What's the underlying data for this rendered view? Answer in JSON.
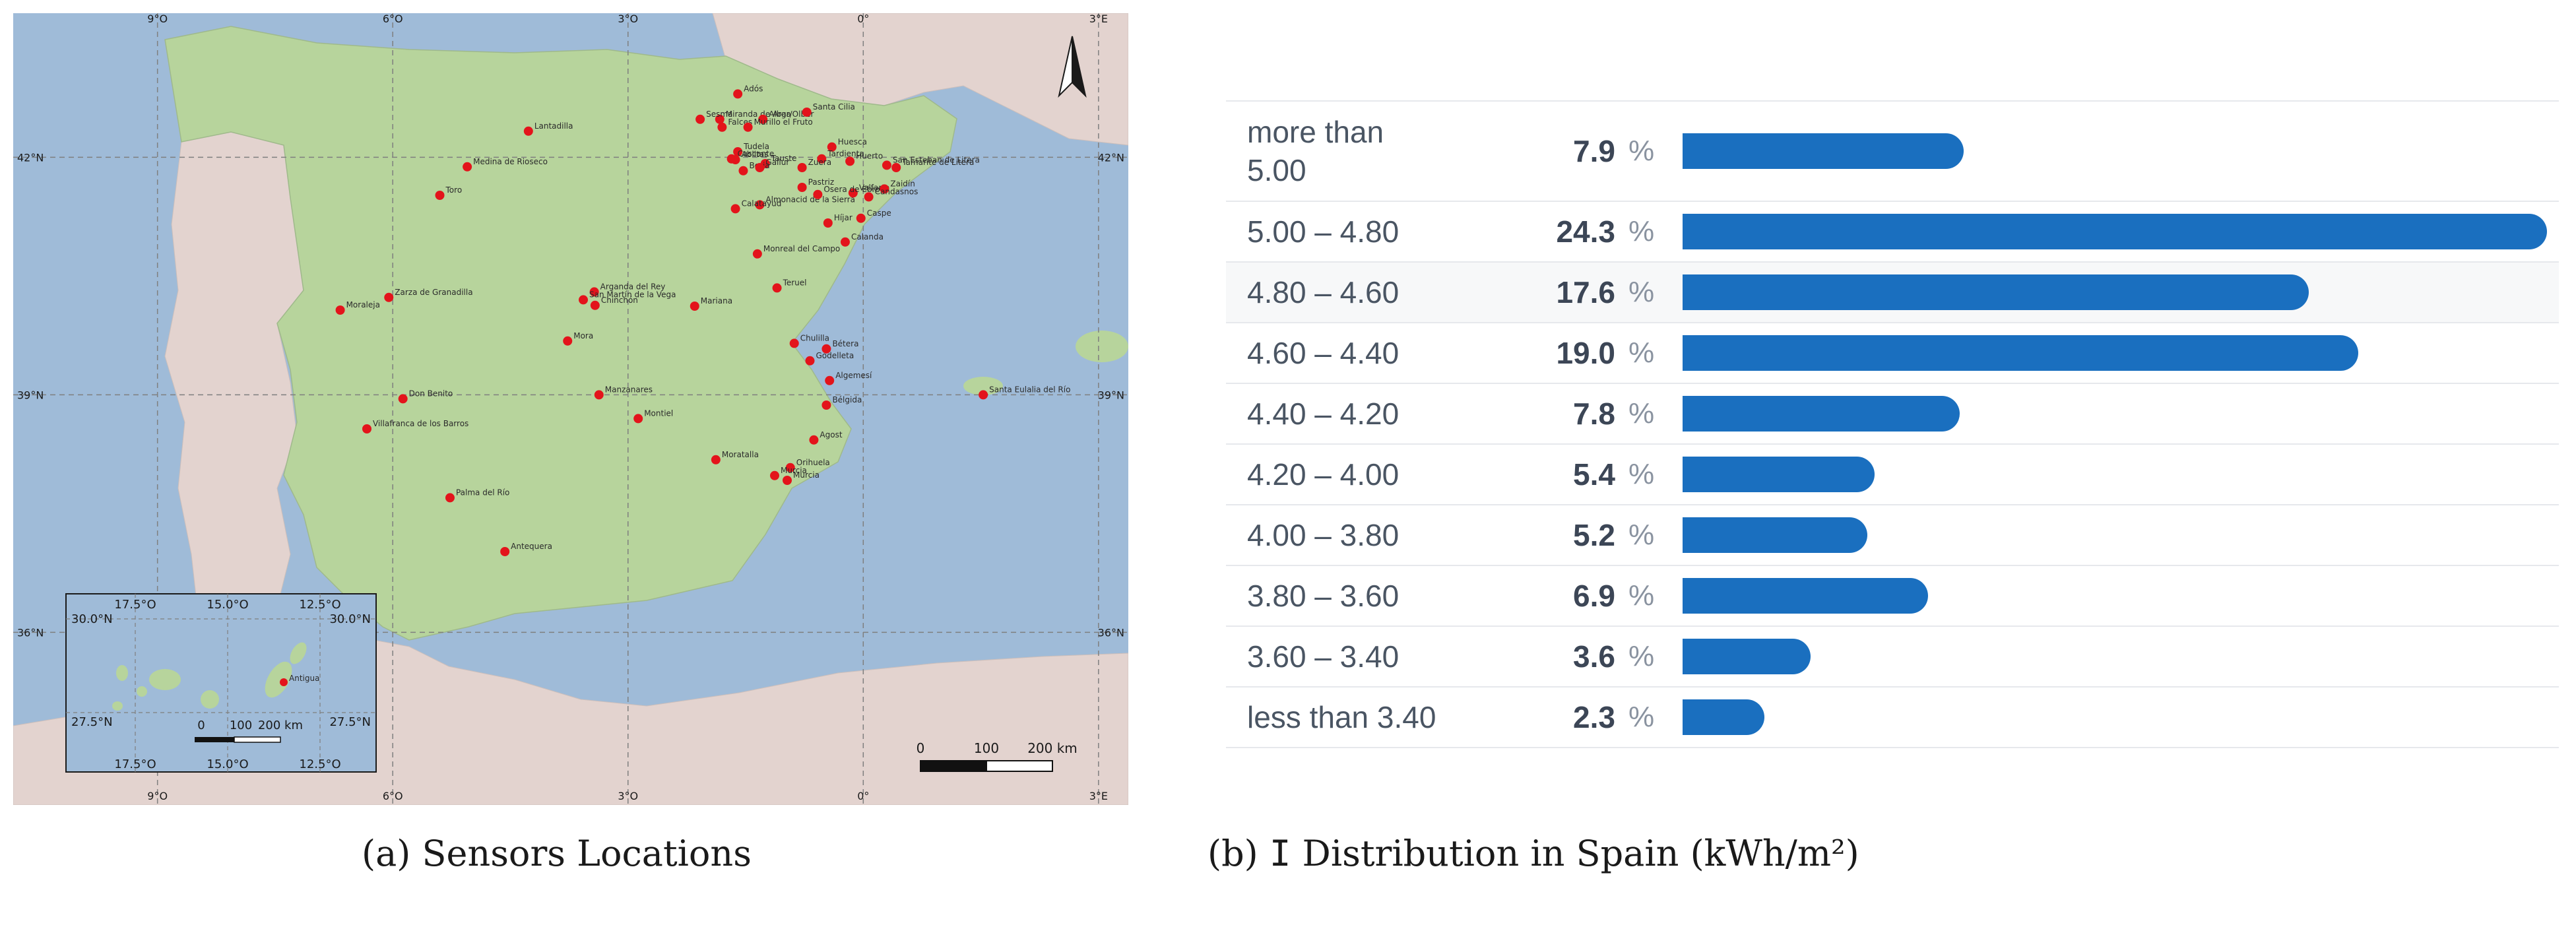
{
  "captions": {
    "a": "(a) Sensors Locations",
    "b_prefix": "(b) ",
    "b_symbol": "I",
    "b_suffix": " Distribution in Spain (kWh/m²)"
  },
  "map": {
    "north_arrow_icon": "north-arrow-icon",
    "colors": {
      "sea": "#9fbbd8",
      "land_spain": "#b7d49c",
      "land_other": "#e3d3cf",
      "point": "#e3141b",
      "grid": "#7f7f7f"
    },
    "lon_ticks": [
      {
        "label": "9°O",
        "lon": -9
      },
      {
        "label": "6°O",
        "lon": -6
      },
      {
        "label": "3°O",
        "lon": -3
      },
      {
        "label": "0°",
        "lon": 0
      },
      {
        "label": "3°E",
        "lon": 3
      }
    ],
    "lat_ticks": [
      {
        "label": "42°N",
        "lat": 42
      },
      {
        "label": "39°N",
        "lat": 39
      },
      {
        "label": "36°N",
        "lat": 36
      }
    ],
    "scale_bar": {
      "labels": [
        "0",
        "100",
        "200 km"
      ]
    },
    "sensors": [
      {
        "name": "Adós",
        "lon": -1.6,
        "lat": 42.8
      },
      {
        "name": "Miranda de Arga",
        "lon": -1.83,
        "lat": 42.48
      },
      {
        "name": "Sesma",
        "lon": -2.08,
        "lat": 42.48
      },
      {
        "name": "Falces",
        "lon": -1.8,
        "lat": 42.38
      },
      {
        "name": "Albar/Olber",
        "lon": -1.28,
        "lat": 42.48
      },
      {
        "name": "Santa Cilia",
        "lon": -0.72,
        "lat": 42.57
      },
      {
        "name": "Murillo el Fruto",
        "lon": -1.47,
        "lat": 42.38
      },
      {
        "name": "Lantadilla",
        "lon": -4.27,
        "lat": 42.33
      },
      {
        "name": "Tudela",
        "lon": -1.6,
        "lat": 42.07
      },
      {
        "name": "Huesca",
        "lon": -0.4,
        "lat": 42.13
      },
      {
        "name": "Cascante",
        "lon": -1.68,
        "lat": 41.98
      },
      {
        "name": "Tauste",
        "lon": -1.25,
        "lat": 41.92
      },
      {
        "name": "Tardienta",
        "lon": -0.53,
        "lat": 41.98
      },
      {
        "name": "Huerto",
        "lon": -0.17,
        "lat": 41.95
      },
      {
        "name": "San Esteban de Litera",
        "lon": 0.3,
        "lat": 41.9
      },
      {
        "name": "Medina de Rioseco",
        "lon": -5.05,
        "lat": 41.88
      },
      {
        "name": "Ablitas",
        "lon": -1.63,
        "lat": 41.97
      },
      {
        "name": "Borja",
        "lon": -1.53,
        "lat": 41.83
      },
      {
        "name": "Gallur",
        "lon": -1.32,
        "lat": 41.87
      },
      {
        "name": "Zuera",
        "lon": -0.78,
        "lat": 41.87
      },
      {
        "name": "Tamarite de Litera",
        "lon": 0.42,
        "lat": 41.87
      },
      {
        "name": "Pastriz",
        "lon": -0.78,
        "lat": 41.62
      },
      {
        "name": "Valfarta",
        "lon": -0.13,
        "lat": 41.55
      },
      {
        "name": "Zaidín",
        "lon": 0.27,
        "lat": 41.6
      },
      {
        "name": "Toro",
        "lon": -5.4,
        "lat": 41.52
      },
      {
        "name": "Almonacid de la Sierra",
        "lon": -1.32,
        "lat": 41.4
      },
      {
        "name": "Osera de Ebro",
        "lon": -0.58,
        "lat": 41.53
      },
      {
        "name": "Candasnos",
        "lon": 0.07,
        "lat": 41.5
      },
      {
        "name": "Calatayud",
        "lon": -1.63,
        "lat": 41.35
      },
      {
        "name": "Híjar",
        "lon": -0.45,
        "lat": 41.17
      },
      {
        "name": "Caspe",
        "lon": -0.03,
        "lat": 41.23
      },
      {
        "name": "Calanda",
        "lon": -0.23,
        "lat": 40.93
      },
      {
        "name": "Monreal del Campo",
        "lon": -1.35,
        "lat": 40.78
      },
      {
        "name": "Teruel",
        "lon": -1.1,
        "lat": 40.35
      },
      {
        "name": "Arganda del Rey",
        "lon": -3.43,
        "lat": 40.3
      },
      {
        "name": "San Martín de la Vega",
        "lon": -3.57,
        "lat": 40.2
      },
      {
        "name": "Chinchón",
        "lon": -3.42,
        "lat": 40.13
      },
      {
        "name": "Zarza de Granadilla",
        "lon": -6.05,
        "lat": 40.23
      },
      {
        "name": "Moraleja",
        "lon": -6.67,
        "lat": 40.07
      },
      {
        "name": "Mariana",
        "lon": -2.15,
        "lat": 40.12
      },
      {
        "name": "Mora",
        "lon": -3.77,
        "lat": 39.68
      },
      {
        "name": "Chulilla",
        "lon": -0.88,
        "lat": 39.65
      },
      {
        "name": "Bétera",
        "lon": -0.47,
        "lat": 39.58
      },
      {
        "name": "Godelleta",
        "lon": -0.68,
        "lat": 39.43
      },
      {
        "name": "Algemesí",
        "lon": -0.43,
        "lat": 39.18
      },
      {
        "name": "Manzanares",
        "lon": -3.37,
        "lat": 39.0
      },
      {
        "name": "Santa Eulalia del Río",
        "lon": 1.53,
        "lat": 39.0
      },
      {
        "name": "Don Benito",
        "lon": -5.87,
        "lat": 38.95
      },
      {
        "name": "Bélgida",
        "lon": -0.47,
        "lat": 38.87
      },
      {
        "name": "Montiel",
        "lon": -2.87,
        "lat": 38.7
      },
      {
        "name": "Villafranca de los Barros",
        "lon": -6.33,
        "lat": 38.57
      },
      {
        "name": "Agost",
        "lon": -0.63,
        "lat": 38.43
      },
      {
        "name": "Moratalla",
        "lon": -1.88,
        "lat": 38.18
      },
      {
        "name": "Orihuela",
        "lon": -0.93,
        "lat": 38.08
      },
      {
        "name": "Murcia",
        "lon": -1.13,
        "lat": 37.98
      },
      {
        "name": "Murcia",
        "lon": -0.97,
        "lat": 37.92
      },
      {
        "name": "Palma del Río",
        "lon": -5.27,
        "lat": 37.7
      },
      {
        "name": "Antequera",
        "lon": -4.57,
        "lat": 37.02
      }
    ],
    "inset": {
      "lon_ticks": [
        "17.5°O",
        "15.0°O",
        "12.5°O"
      ],
      "lat_ticks": [
        "30.0°N",
        "27.5°N"
      ],
      "scale_labels": [
        "0",
        "100",
        "200 km"
      ],
      "sensor": {
        "name": "Antigua",
        "lon": -14.02,
        "lat": 28.42
      }
    }
  },
  "chart_data": {
    "type": "bar",
    "orientation": "horizontal",
    "categories": [
      "more than 5.00",
      "5.00 – 4.80",
      "4.80 – 4.60",
      "4.60 – 4.40",
      "4.40 – 4.20",
      "4.20 – 4.00",
      "4.00 – 3.80",
      "3.80 – 3.60",
      "3.60 – 3.40",
      "less than 3.40"
    ],
    "values": [
      7.9,
      24.3,
      17.6,
      19.0,
      7.8,
      5.4,
      5.2,
      6.9,
      3.6,
      2.3
    ],
    "value_labels": [
      "7.9",
      "24.3",
      "17.6",
      "19.0",
      "7.8",
      "5.4",
      "5.2",
      "6.9",
      "3.6",
      "2.3"
    ],
    "unit": "%",
    "xlim": [
      0,
      24.3
    ],
    "bar_color": "#1a6fbf",
    "title": "",
    "xlabel": "",
    "ylabel": ""
  }
}
